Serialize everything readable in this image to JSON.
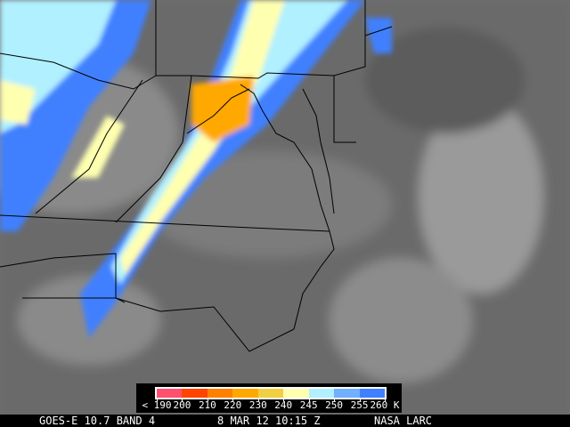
{
  "legend": {
    "colors": [
      "#ff5070",
      "#ff4400",
      "#ff8000",
      "#ffa800",
      "#f0d040",
      "#ffffb0",
      "#b0f0ff",
      "#70b0ff",
      "#4080ff"
    ],
    "ticks": [
      "< 190",
      "200",
      "210",
      "220",
      "230",
      "240",
      "245",
      "250",
      "255",
      "260 K"
    ]
  },
  "footer": {
    "satellite": "GOES-E 10.7 BAND 4",
    "datetime": "8 MAR 12 10:15 Z",
    "credit": "NASA LARC"
  }
}
